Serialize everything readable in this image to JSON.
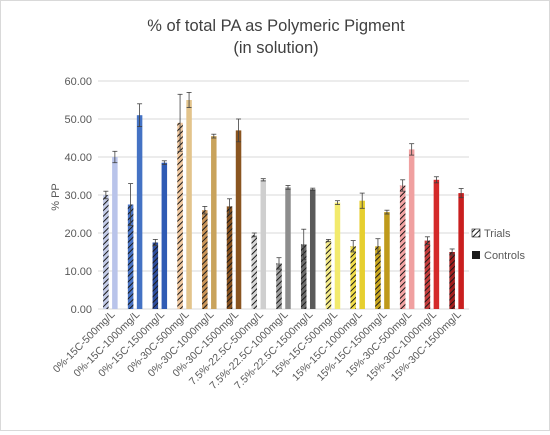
{
  "chart_data": {
    "type": "bar",
    "title": [
      "% of total PA as Polymeric Pigment",
      "(in solution)"
    ],
    "ylabel": "% PP",
    "xlabel": "",
    "ylim": [
      0,
      60
    ],
    "yticks": [
      "0.00",
      "10.00",
      "20.00",
      "30.00",
      "40.00",
      "50.00",
      "60.00"
    ],
    "grid": true,
    "legend_position": "right",
    "categories": [
      "0%-15C-500mg/L",
      "0%-15C-1000mg/L",
      "0%-15C-1500mg/L",
      "0%-30C-500mg/L",
      "0%-30C-1000mg/L",
      "0%-30C-1500mg/L",
      "7.5%-22.5C-500mg/L",
      "7.5%-22.5C-1000mg/L",
      "7.5%-22.5C-1500mg/L",
      "15%-15C-500mg/L",
      "15%-15C-1000mg/L",
      "15%-15C-1500mg/L",
      "15%-30C-500mg/L",
      "15%-30C-1000mg/L",
      "15%-30C-1500mg/L"
    ],
    "series": [
      {
        "name": "Trials",
        "pattern": "hatched",
        "values": [
          30.0,
          27.5,
          17.5,
          49.0,
          26.0,
          27.0,
          19.5,
          12.0,
          17.0,
          18.0,
          16.5,
          16.5,
          32.5,
          18.0,
          15.0
        ],
        "errors": [
          1.0,
          5.5,
          0.8,
          7.5,
          1.0,
          2.0,
          0.5,
          1.5,
          4.0,
          0.3,
          1.5,
          2.0,
          1.5,
          1.0,
          0.8
        ]
      },
      {
        "name": "Controls",
        "pattern": "solid",
        "values": [
          40.0,
          51.0,
          38.5,
          55.0,
          45.5,
          47.0,
          34.0,
          32.0,
          31.5,
          28.0,
          28.5,
          25.5,
          42.0,
          34.0,
          30.5
        ],
        "errors": [
          1.5,
          3.0,
          0.5,
          2.0,
          0.5,
          3.0,
          0.3,
          0.5,
          0.3,
          0.5,
          2.0,
          0.5,
          1.5,
          0.8,
          1.2
        ]
      }
    ],
    "colors": {
      "trials": [
        "#c3cbe8",
        "#4a74c4",
        "#2e4d9c",
        "#f1c9a1",
        "#c99458",
        "#86511f",
        "#d6d6d6",
        "#9e9e9e",
        "#6b6b6b",
        "#f5ec8a",
        "#f1dd4b",
        "#c9a61c",
        "#f3a3a3",
        "#c23b3b",
        "#a11e1e"
      ],
      "controls": [
        "#b9c4ea",
        "#4472c4",
        "#2f5bb4",
        "#e3c48b",
        "#c9a35c",
        "#8a5520",
        "#cfcfcf",
        "#8d8d8d",
        "#5a5a5a",
        "#f2ea6c",
        "#e6cf2f",
        "#bf9a1b",
        "#f0a0a0",
        "#d42a2a",
        "#c91f1f"
      ],
      "text": "#595959",
      "grid": "#d9d9d9"
    }
  }
}
